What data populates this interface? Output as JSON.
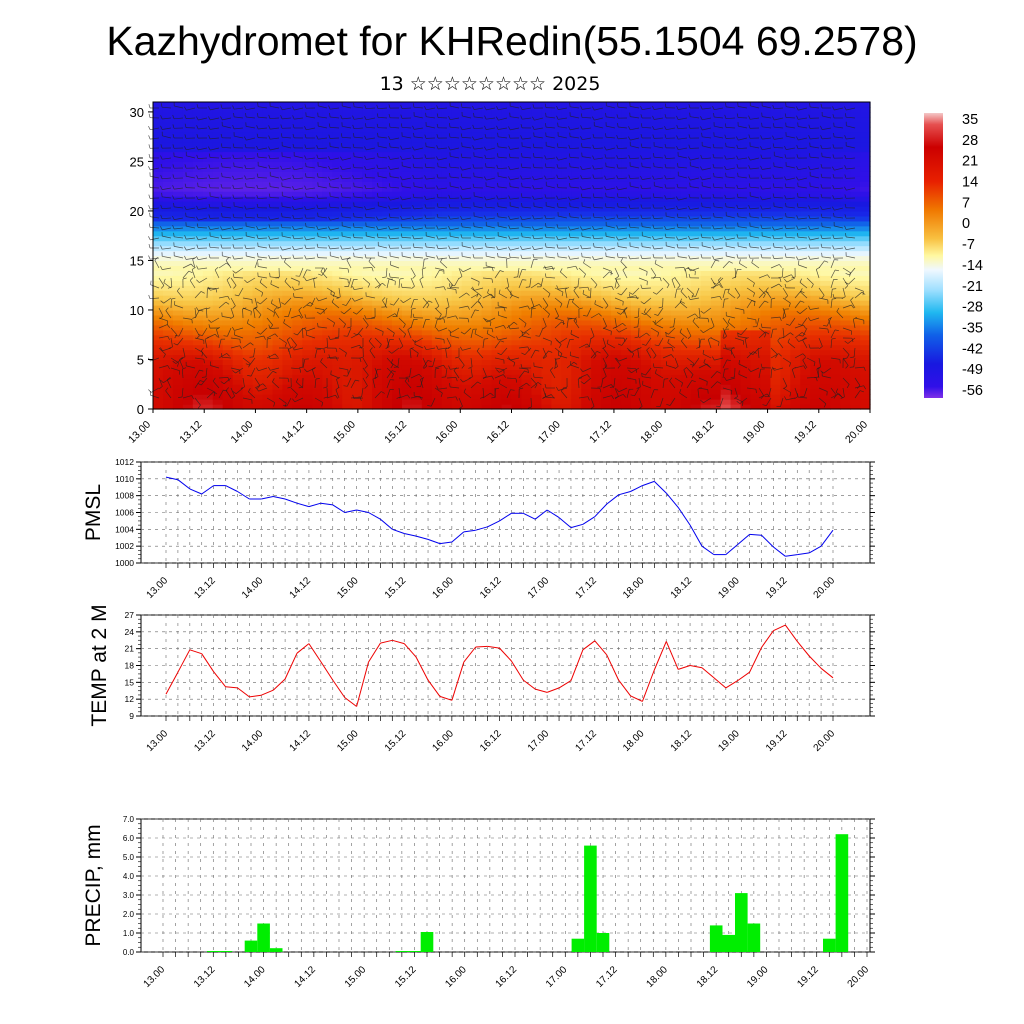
{
  "title": "Kazhydromet for KHRedin(55.1504 69.2578)",
  "subtitle": "13 ☆☆☆☆☆☆☆☆ 2025",
  "time_labels": [
    "13.00",
    "13.12",
    "14.00",
    "14.12",
    "15.00",
    "15.12",
    "16.00",
    "16.12",
    "17.00",
    "17.12",
    "18.00",
    "18.12",
    "19.00",
    "19.12",
    "20.00"
  ],
  "chart_data": [
    {
      "type": "heatmap",
      "name": "temperature-height cross-section with wind barbs",
      "y_ticks": [
        "0",
        "5",
        "10",
        "15",
        "20",
        "25",
        "30"
      ],
      "ylim": [
        0,
        31
      ],
      "colorbar": {
        "labels": [
          "35",
          "28",
          "21",
          "14",
          "7",
          "0",
          "-7",
          "-14",
          "-21",
          "-28",
          "-35",
          "-42",
          "-49",
          "-56"
        ],
        "range": [
          -63,
          40
        ]
      },
      "profile_note_levels": [
        {
          "level": 0,
          "temp": 25
        },
        {
          "level": 5,
          "temp": 18
        },
        {
          "level": 10,
          "temp": 5
        },
        {
          "level": 15,
          "temp": -10
        },
        {
          "level": 18,
          "temp": -30
        },
        {
          "level": 22,
          "temp": -55
        },
        {
          "level": 27,
          "temp": -50
        },
        {
          "level": 31,
          "temp": -52
        }
      ]
    },
    {
      "type": "line",
      "ylabel": "PMSL",
      "y_ticks": [
        "1000",
        "1002",
        "1004",
        "1006",
        "1008",
        "1010",
        "1012"
      ],
      "ylim": [
        1000,
        1012
      ],
      "color": "#0000ee",
      "x_step_hours": 3,
      "values": [
        1010.2,
        1009.9,
        1008.8,
        1008.2,
        1009.2,
        1009.2,
        1008.5,
        1007.6,
        1007.6,
        1007.9,
        1007.6,
        1007.1,
        1006.7,
        1007.1,
        1006.9,
        1006.0,
        1006.3,
        1006.0,
        1005.2,
        1004.0,
        1003.5,
        1003.2,
        1002.8,
        1002.3,
        1002.5,
        1003.7,
        1003.9,
        1004.3,
        1005.0,
        1005.9,
        1005.9,
        1005.2,
        1006.3,
        1005.4,
        1004.2,
        1004.6,
        1005.5,
        1007.0,
        1008.1,
        1008.5,
        1009.2,
        1009.7,
        1008.3,
        1006.6,
        1004.5,
        1002.0,
        1001.0,
        1001.0,
        1002.2,
        1003.4,
        1003.3,
        1001.9,
        1000.8,
        1001.0,
        1001.2,
        1002.0,
        1003.9
      ]
    },
    {
      "type": "line",
      "ylabel": "TEMP at 2 M",
      "y_ticks": [
        "9",
        "12",
        "15",
        "18",
        "21",
        "24",
        "27"
      ],
      "ylim": [
        9,
        27
      ],
      "color": "#ee0000",
      "x_step_hours": 3,
      "values": [
        12.9,
        16.8,
        20.8,
        20.1,
        16.9,
        14.2,
        14.0,
        12.4,
        12.7,
        13.6,
        15.6,
        20.2,
        21.9,
        18.7,
        15.4,
        12.3,
        10.7,
        18.6,
        22.0,
        22.5,
        21.9,
        19.5,
        15.4,
        12.5,
        11.8,
        18.6,
        21.3,
        21.4,
        21.1,
        18.8,
        15.4,
        13.8,
        13.2,
        14.0,
        15.3,
        20.8,
        22.4,
        19.9,
        15.4,
        12.6,
        11.6,
        17.2,
        22.3,
        17.3,
        18.0,
        17.6,
        15.8,
        14.0,
        15.3,
        16.8,
        21.2,
        24.2,
        25.2,
        22.3,
        19.7,
        17.5,
        15.8
      ]
    },
    {
      "type": "bar",
      "ylabel": "PRECIP, mm",
      "y_ticks": [
        "0.0",
        "1.0",
        "2.0",
        "3.0",
        "4.0",
        "5.0",
        "6.0",
        "7.0"
      ],
      "ylim": [
        0,
        7
      ],
      "color": "#00ee00",
      "x_step_hours": 3,
      "values": [
        0,
        0,
        0,
        0,
        0.05,
        0.05,
        0,
        0.6,
        1.5,
        0.2,
        0,
        0,
        0,
        0,
        0,
        0,
        0,
        0,
        0,
        0.05,
        0.05,
        1.05,
        0,
        0,
        0,
        0,
        0,
        0,
        0,
        0,
        0,
        0,
        0,
        0.7,
        5.6,
        1.0,
        0,
        0,
        0,
        0,
        0,
        0,
        0,
        0,
        1.4,
        0.9,
        3.1,
        1.5,
        0,
        0,
        0,
        0,
        0,
        0.7,
        6.2,
        0,
        0
      ]
    }
  ]
}
